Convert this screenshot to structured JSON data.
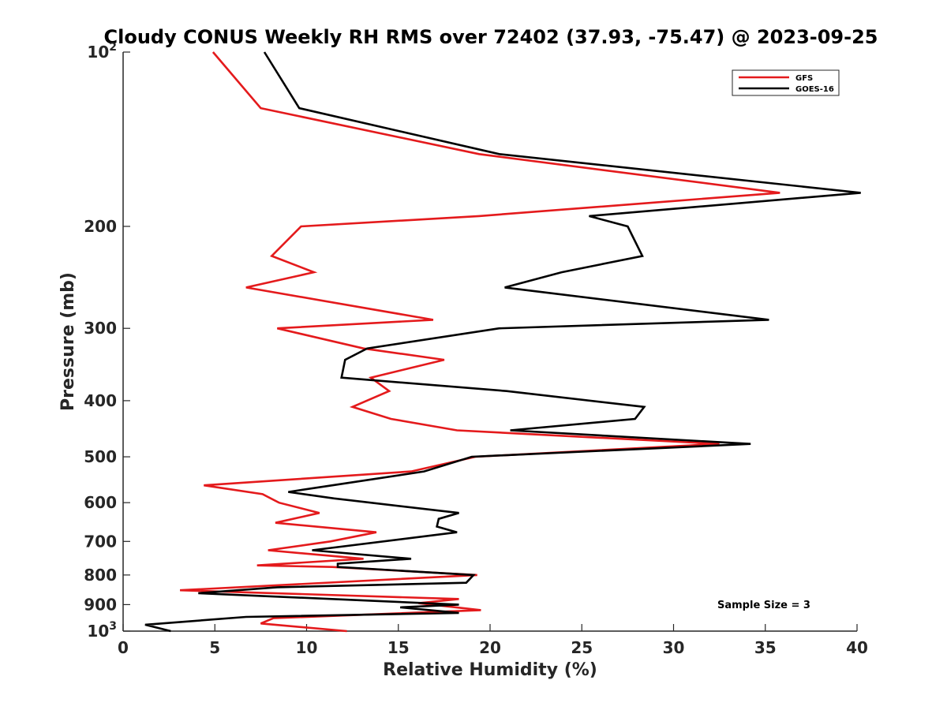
{
  "chart_data": {
    "type": "line",
    "title": "Cloudy CONUS Weekly RH RMS over 72402 (37.93, -75.47) @ 2023-09-25",
    "xlabel": "Relative Humidity (%)",
    "ylabel": "Pressure (mb)",
    "xlim": [
      0,
      40
    ],
    "ylim": [
      100,
      1000
    ],
    "y_scale": "log",
    "y_reversed": true,
    "grid": false,
    "legend_position": "top-right",
    "x_ticks": [
      "0",
      "5",
      "10",
      "15",
      "20",
      "25",
      "30",
      "35",
      "40"
    ],
    "y_ticks": [
      {
        "value": 100,
        "base": "10",
        "exp": "2"
      },
      {
        "value": 200,
        "label": "200"
      },
      {
        "value": 300,
        "label": "300"
      },
      {
        "value": 400,
        "label": "400"
      },
      {
        "value": 500,
        "label": "500"
      },
      {
        "value": 600,
        "label": "600"
      },
      {
        "value": 700,
        "label": "700"
      },
      {
        "value": 800,
        "label": "800"
      },
      {
        "value": 900,
        "label": "900"
      },
      {
        "value": 1000,
        "base": "10",
        "exp": "3"
      }
    ],
    "annotation": "Sample Size = 3",
    "series": [
      {
        "name": "GFS",
        "color": "#e41a1c",
        "points": [
          [
            4.9,
            100
          ],
          [
            7.5,
            125
          ],
          [
            19.4,
            150
          ],
          [
            35.8,
            175
          ],
          [
            19.4,
            192
          ],
          [
            9.7,
            200
          ],
          [
            8.1,
            225
          ],
          [
            10.4,
            240
          ],
          [
            6.7,
            255
          ],
          [
            16.9,
            290
          ],
          [
            8.4,
            300
          ],
          [
            13.1,
            325
          ],
          [
            17.5,
            340
          ],
          [
            13.5,
            365
          ],
          [
            14.5,
            385
          ],
          [
            12.5,
            410
          ],
          [
            14.6,
            430
          ],
          [
            18.2,
            450
          ],
          [
            32.5,
            475
          ],
          [
            19.2,
            500
          ],
          [
            15.7,
            530
          ],
          [
            4.4,
            560
          ],
          [
            7.6,
            580
          ],
          [
            8.5,
            600
          ],
          [
            10.7,
            625
          ],
          [
            8.3,
            650
          ],
          [
            13.8,
            675
          ],
          [
            11.3,
            700
          ],
          [
            7.9,
            725
          ],
          [
            13.1,
            750
          ],
          [
            7.3,
            770
          ],
          [
            11.4,
            775
          ],
          [
            19.3,
            800
          ],
          [
            3.1,
            850
          ],
          [
            18.3,
            880
          ],
          [
            16.1,
            895
          ],
          [
            19.5,
            920
          ],
          [
            8.2,
            950
          ],
          [
            7.5,
            970
          ],
          [
            12.2,
            1000
          ]
        ]
      },
      {
        "name": "GOES-16",
        "color": "#000000",
        "points": [
          [
            7.7,
            100
          ],
          [
            9.6,
            125
          ],
          [
            20.5,
            150
          ],
          [
            40.2,
            175
          ],
          [
            25.4,
            192
          ],
          [
            27.5,
            200
          ],
          [
            28.3,
            225
          ],
          [
            23.9,
            240
          ],
          [
            20.8,
            255
          ],
          [
            35.2,
            290
          ],
          [
            20.5,
            300
          ],
          [
            13.3,
            325
          ],
          [
            12.1,
            340
          ],
          [
            11.9,
            365
          ],
          [
            20.9,
            385
          ],
          [
            28.4,
            410
          ],
          [
            27.9,
            430
          ],
          [
            21.1,
            450
          ],
          [
            34.2,
            475
          ],
          [
            19.0,
            500
          ],
          [
            16.4,
            530
          ],
          [
            11.4,
            560
          ],
          [
            9.0,
            575
          ],
          [
            11.5,
            590
          ],
          [
            18.3,
            625
          ],
          [
            17.2,
            640
          ],
          [
            17.1,
            660
          ],
          [
            18.2,
            675
          ],
          [
            10.3,
            725
          ],
          [
            15.7,
            750
          ],
          [
            11.7,
            765
          ],
          [
            11.7,
            775
          ],
          [
            19.1,
            800
          ],
          [
            18.7,
            825
          ],
          [
            8.4,
            840
          ],
          [
            4.1,
            860
          ],
          [
            18.3,
            900
          ],
          [
            15.1,
            910
          ],
          [
            18.3,
            930
          ],
          [
            6.7,
            945
          ],
          [
            1.2,
            975
          ],
          [
            2.6,
            1000
          ]
        ]
      }
    ]
  }
}
